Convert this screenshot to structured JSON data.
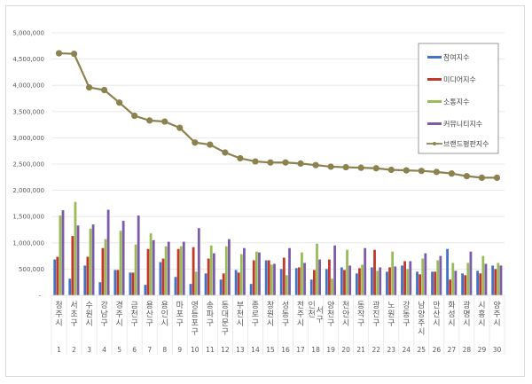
{
  "chart_data": {
    "type": "bar+line",
    "title": "",
    "xlabel": "",
    "ylabel": "",
    "ylim": [
      0,
      5000000
    ],
    "yticks": [
      "-",
      "500,000",
      "1,000,000",
      "1,500,000",
      "2,000,000",
      "2,500,000",
      "3,000,000",
      "3,500,000",
      "4,000,000",
      "4,500,000",
      "5,000,000"
    ],
    "grid": true,
    "legend_position": "upper-right-inside",
    "categories": [
      "청주시",
      "서초구",
      "수원시",
      "강남구",
      "경주시",
      "금천구",
      "용산구",
      "용인시",
      "마포구",
      "영등포구",
      "송파구",
      "동대문구",
      "부천시",
      "종로구",
      "창원시",
      "성동구",
      "전주시",
      "인천 서구",
      "양천구",
      "천안시",
      "동작구",
      "광진구",
      "노원구",
      "강동구",
      "남양주시",
      "안산시",
      "화성시",
      "광명시",
      "시흥시",
      "양주시"
    ],
    "ranks": [
      "1",
      "2",
      "3",
      "4",
      "5",
      "6",
      "7",
      "8",
      "9",
      "10",
      "11",
      "12",
      "13",
      "14",
      "15",
      "16",
      "17",
      "18",
      "19",
      "20",
      "21",
      "22",
      "23",
      "24",
      "25",
      "26",
      "27",
      "28",
      "29",
      "30"
    ],
    "series": [
      {
        "name": "참여지수",
        "type": "bar",
        "color": "#4472c4",
        "values": [
          683000,
          317000,
          567000,
          250000,
          483000,
          433000,
          200000,
          633000,
          350000,
          217000,
          417000,
          300000,
          483000,
          217000,
          667000,
          500000,
          517000,
          300000,
          500000,
          533000,
          417000,
          533000,
          450000,
          567000,
          450000,
          450000,
          883000,
          417000,
          467000,
          567000
        ]
      },
      {
        "name": "미디어지수",
        "type": "bar",
        "color": "#c0392b",
        "values": [
          733000,
          1130000,
          733000,
          900000,
          483000,
          433000,
          883000,
          700000,
          883000,
          917000,
          700000,
          417000,
          433000,
          667000,
          667000,
          717000,
          533000,
          483000,
          683000,
          483000,
          517000,
          867000,
          533000,
          650000,
          400000,
          450000,
          300000,
          383000,
          417000,
          500000
        ]
      },
      {
        "name": "소통지수",
        "type": "bar",
        "color": "#9bbb59",
        "values": [
          1520000,
          1780000,
          1270000,
          1070000,
          1230000,
          967000,
          1180000,
          933000,
          933000,
          450000,
          950000,
          933000,
          783000,
          833000,
          583000,
          383000,
          817000,
          983000,
          317000,
          867000,
          583000,
          467000,
          833000,
          500000,
          700000,
          667000,
          617000,
          617000,
          750000,
          617000
        ]
      },
      {
        "name": "커뮤니티지수",
        "type": "bar",
        "color": "#7c5ca8",
        "values": [
          1620000,
          1330000,
          1350000,
          1630000,
          1420000,
          1520000,
          1050000,
          1020000,
          1020000,
          1280000,
          800000,
          1070000,
          900000,
          817000,
          600000,
          900000,
          617000,
          683000,
          950000,
          567000,
          900000,
          533000,
          550000,
          650000,
          800000,
          750000,
          467000,
          833000,
          600000,
          567000
        ]
      },
      {
        "name": "브랜드평판지수",
        "type": "line",
        "color": "#8c8250",
        "values": [
          4610000,
          4600000,
          3960000,
          3910000,
          3670000,
          3420000,
          3330000,
          3310000,
          3190000,
          2910000,
          2870000,
          2720000,
          2610000,
          2550000,
          2530000,
          2530000,
          2510000,
          2480000,
          2450000,
          2440000,
          2430000,
          2420000,
          2390000,
          2380000,
          2370000,
          2350000,
          2320000,
          2270000,
          2240000,
          2240000
        ]
      }
    ]
  }
}
